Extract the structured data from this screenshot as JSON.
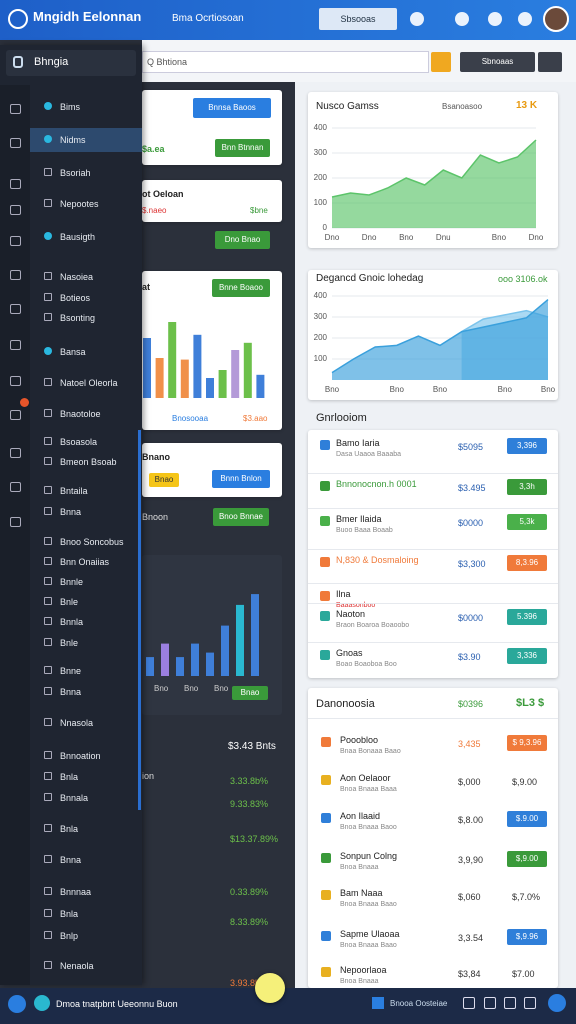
{
  "topbar": {
    "logo": "Mngidh Eelonnan",
    "nav": "Bma Ocrtiosoan",
    "search": "Sbsooas"
  },
  "toolbar": {
    "search": "Q Bhtiona",
    "button": "Sbnoaas"
  },
  "sidebar": {
    "title": "Bhngia",
    "items": [
      "Bims",
      "Nidms",
      "Bsoriah",
      "Nepootes",
      "Bausigth",
      "Nasoiea",
      "Botieos",
      "Bsonting",
      "Bansa",
      "Natoel Oleorla",
      "Bnaotoloe",
      "Bsoasola",
      "Bmeon Bsoab",
      "Bntaila",
      "Bnna",
      "Bnoo Soncobus",
      "Bnn Onaiias",
      "Bnnle",
      "Bnle",
      "Bnnla",
      "Bnle",
      "Bnne",
      "Bnna",
      "Nnasola",
      "Bnnoation",
      "Bnla",
      "Bnnala",
      "Bnla",
      "Bnna",
      "Bnnnaa",
      "Bnla",
      "Bnlp",
      "Nenaola"
    ]
  },
  "left_panel": {
    "card1": {
      "button": "Bnnsa Baoos",
      "value": "$a.ea",
      "action": "Bnn Btnnan"
    },
    "card2": {
      "title": "ot Oeloan",
      "value": "$.naeo",
      "amount": "$bne",
      "action": "Dno Bnao"
    },
    "card3": {
      "title": "at",
      "action": "Bnne Boaoo",
      "label": "Bnosooaa",
      "amount": "$3.aao"
    },
    "card4": {
      "title": "Bnano",
      "button1": "Bnao",
      "button2": "Bnnn Bnlon"
    },
    "section": {
      "title": "Bnoon",
      "action": "Bnoo Bnnae"
    },
    "dark_chart": {
      "labels": [
        "Bno",
        "Bno",
        "Bno"
      ],
      "action": "Bnao"
    },
    "stats": {
      "title": "$3.43 Bnts",
      "subtitle": "ion",
      "values": [
        "3.33.8b%",
        "9.33.83%",
        "$13.37.89%",
        "0.33.89%",
        "8.33.89%",
        "3.93.8b"
      ]
    }
  },
  "chart_data": [
    {
      "type": "area",
      "title": "Nusco Gamss",
      "filter": "Bsanoasoo",
      "badge": "13 K",
      "categories": [
        "Dno",
        null,
        "Dno",
        null,
        "Bno",
        null,
        "Dnu",
        null,
        null,
        "Bno",
        null,
        "Dno"
      ],
      "series": [
        {
          "color": "#5cc46a",
          "values": [
            124,
            140,
            132,
            160,
            200,
            172,
            232,
            200,
            292,
            260,
            284,
            352
          ]
        }
      ],
      "ylim": [
        0,
        400
      ],
      "yticks": [
        0,
        100,
        200,
        300,
        400
      ]
    },
    {
      "type": "area",
      "title": "Degancd Gnoic lohedag",
      "annotation": "ooo 3106.ok",
      "categories": [
        "Bno",
        null,
        null,
        "Bno",
        null,
        "Bno",
        null,
        null,
        "Bno",
        null,
        "Bno"
      ],
      "series": [
        {
          "color": "#7cc4ec",
          "values": [
            null,
            null,
            null,
            null,
            null,
            null,
            230,
            290,
            310,
            330,
            300
          ]
        },
        {
          "color": "#3aa0dc",
          "values": [
            35,
            100,
            157,
            165,
            209,
            165,
            230,
            252,
            274,
            296,
            383
          ]
        }
      ],
      "ylim": [
        0,
        400
      ],
      "yticks": [
        100,
        200,
        300,
        400
      ]
    },
    {
      "type": "bar",
      "values": [
        75,
        50,
        95,
        48,
        79,
        25,
        35,
        60,
        69,
        29
      ],
      "colors": [
        "#3f7fd9",
        "#f0904a",
        "#6cc04a",
        "#f0904a",
        "#3f7fd9",
        "#3f7fd9",
        "#6cc04a",
        "#b49ad8",
        "#6cc04a",
        "#3f7fd9"
      ],
      "ylim": [
        0,
        100
      ]
    },
    {
      "type": "bar",
      "values": [
        21,
        36,
        21,
        36,
        26,
        56,
        79,
        91
      ],
      "colors": [
        "#3f7fd9",
        "#9b7fe0",
        "#3f7fd9",
        "#3f7fd9",
        "#3f7fd9",
        "#3f7fd9",
        "#2ab8d0",
        "#3f7fd9"
      ],
      "ylim": [
        0,
        100
      ]
    }
  ],
  "list": {
    "title": "Gnrlooiom",
    "rows": [
      {
        "name": "Bamo Iaria",
        "sub": "Dasa Uaaoa Baaaba",
        "value": "$5095",
        "badge": "3,396",
        "color": "#2f7fd9"
      },
      {
        "name": "Bnnonocnon.h 0001",
        "value": "$3.495",
        "badge": "3,3h",
        "color": "#3a9a3a"
      },
      {
        "name": "Bmer Ilaida",
        "sub": "Buoo Baaa Boaab",
        "value": "$0000",
        "badge": "5,3k",
        "color": "#4ab04a"
      },
      {
        "name": "N,830 & Dosmaloing",
        "value": "$3,300",
        "badge": "8,3.96",
        "color": "#f07a3a"
      },
      {
        "name": "Ilna",
        "sub": "Baaasonboo"
      },
      {
        "name": "Naoton",
        "sub": "Braon Boaroa Boaoobo",
        "value": "$0000",
        "badge": "5.396",
        "color": "#2aa89a"
      },
      {
        "name": "Gnoas",
        "sub": "Boao Boaoboa Boo",
        "value": "$3.90",
        "badge": "3,336",
        "color": "#2aa89a"
      }
    ]
  },
  "table": {
    "title": "Danonoosia",
    "total": "$0396",
    "change": "$L3 $",
    "rows": [
      {
        "name": "Pooobloo",
        "sub": "Bnaa Bonaaa Baao",
        "value": "3,435",
        "badge": "$ 9,3.96",
        "color": "#f07a3a"
      },
      {
        "name": "Aon Oelaoor",
        "sub": "Bnoa Bnaaa Baaa",
        "value": "$,000",
        "badge": "$,9.00"
      },
      {
        "name": "Aon Ilaaid",
        "sub": "Bnoa Bnaaa Baoo",
        "value": "$,8.00",
        "badge": "$.9.00",
        "color": "#2f7fd9"
      },
      {
        "name": "Sonpun Colng",
        "sub": "Bnoa Bnaaa",
        "value": "3,9,90",
        "badge": "$,9.00",
        "color": "#3a9a3a"
      },
      {
        "name": "Bam Naaa",
        "sub": "Bnoa Bnaaa Baao",
        "value": "$,060",
        "badge": "$,7.0%"
      },
      {
        "name": "Sapme Ulaoaa",
        "sub": "Bnoa Bnaaa Baao",
        "value": "3,3.54",
        "badge": "$,9.96",
        "color": "#2f7fd9"
      },
      {
        "name": "Nepoorlaoa",
        "sub": "Bnoa Bnaaa",
        "value": "$3,84",
        "badge": "$7.00"
      }
    ]
  },
  "bottombar": {
    "text": "Dmoa tnatpbnt Ueeonnu Buon",
    "status": "Bnooa Oosteiae"
  }
}
